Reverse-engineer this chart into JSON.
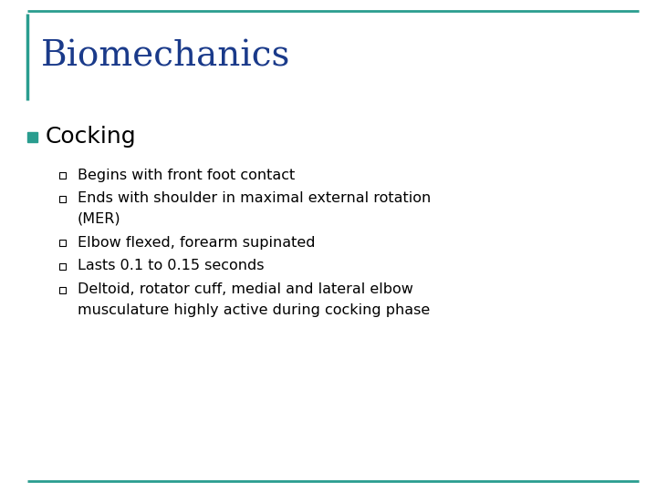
{
  "title": "Biomechanics",
  "title_color": "#1a3a8a",
  "title_fontsize": 28,
  "section_heading": "Cocking",
  "section_heading_color": "#000000",
  "section_heading_fontsize": 18,
  "section_bullet_color": "#2a9d8f",
  "bullet_points": [
    "Begins with front foot contact",
    "Ends with shoulder in maximal external rotation\n(MER)",
    "Elbow flexed, forearm supinated",
    "Lasts 0.1 to 0.15 seconds",
    "Deltoid, rotator cuff, medial and lateral elbow\nmusculature highly active during cocking phase"
  ],
  "bullet_fontsize": 11.5,
  "bullet_color": "#000000",
  "background_color": "#ffffff",
  "border_color": "#2a9d8f",
  "left_bar_color": "#2a9d8f"
}
